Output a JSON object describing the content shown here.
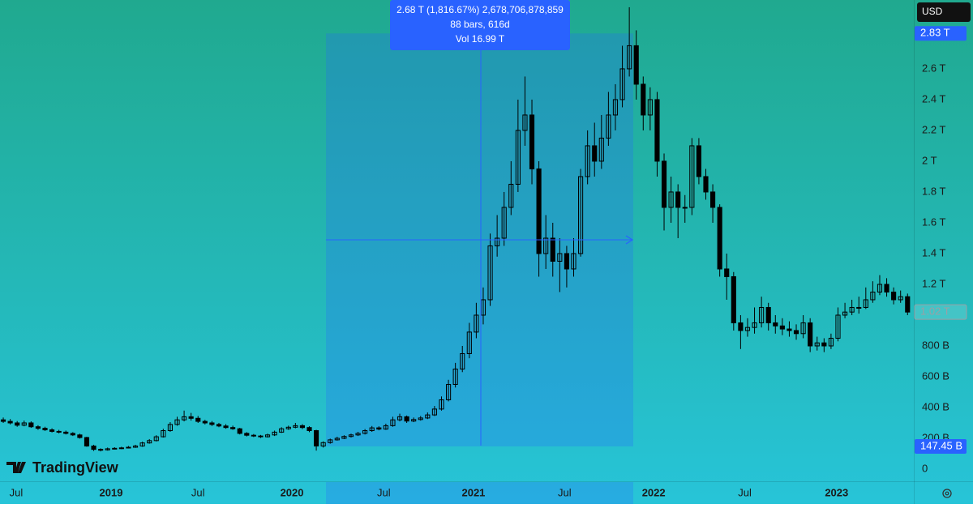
{
  "chart_data": {
    "type": "candlestick",
    "currency": "USD",
    "brand": "TradingView",
    "tooltip": [
      "2.68 T (1,816.67%) 2,678,706,878,859",
      "88 bars, 616d",
      "Vol 16.99 T"
    ],
    "up_color": "#000000",
    "down_color": "#000000",
    "xlim": [
      -0.47,
      130.9
    ],
    "xticks": [
      {
        "value": 1.86,
        "label": "Jul"
      },
      {
        "value": 15.5,
        "label": "2019"
      },
      {
        "value": 28.0,
        "label": "Jul"
      },
      {
        "value": 41.5,
        "label": "2020"
      },
      {
        "value": 54.7,
        "label": "Jul"
      },
      {
        "value": 67.6,
        "label": "2021"
      },
      {
        "value": 80.7,
        "label": "Jul"
      },
      {
        "value": 93.5,
        "label": "2022"
      },
      {
        "value": 106.6,
        "label": "Jul"
      },
      {
        "value": 119.8,
        "label": "2023"
      }
    ],
    "ylim": [
      -79,
      3047
    ],
    "yticks": [
      0,
      {
        "value": 200,
        "label": "200 B"
      },
      {
        "value": 400,
        "label": "400 B"
      },
      {
        "value": 600,
        "label": "600 B"
      },
      {
        "value": 800,
        "label": "800 B"
      },
      {
        "value": 1200,
        "label": "1.2 T"
      },
      {
        "value": 1400,
        "label": "1.4 T"
      },
      {
        "value": 1600,
        "label": "1.6 T"
      },
      {
        "value": 1800,
        "label": "1.8 T"
      },
      {
        "value": 2000,
        "label": "2 T"
      },
      {
        "value": 2200,
        "label": "2.2 T"
      },
      {
        "value": 2400,
        "label": "2.4 T"
      },
      {
        "value": 2600,
        "label": "2.6 T"
      }
    ],
    "price_labels": [
      {
        "value": 2830,
        "label": "2.83 T",
        "color": "#2962ff"
      },
      {
        "value": 1020,
        "label": "1.02 T",
        "color": "#9aa0a6",
        "outline": true
      },
      {
        "value": 147.45,
        "label": "147.45 B",
        "color": "#2962ff"
      }
    ],
    "open": [
      320,
      310,
      300,
      285,
      300,
      275,
      265,
      255,
      245,
      240,
      232,
      222,
      205,
      150,
      128,
      125,
      132,
      135,
      138,
      142,
      150,
      170,
      185,
      210,
      250,
      290,
      320,
      340,
      330,
      310,
      300,
      290,
      280,
      270,
      262,
      232,
      220,
      215,
      210,
      222,
      240,
      262,
      272,
      282,
      270,
      250,
      150,
      172,
      190,
      200,
      212,
      222,
      232,
      250,
      268,
      260,
      282,
      320,
      340,
      312,
      322,
      332,
      352,
      390,
      450,
      550,
      650,
      750,
      890,
      1000,
      1100,
      1450,
      1500,
      1700,
      1850,
      2200,
      2300,
      1950,
      1400,
      1500,
      1350,
      1400,
      1300,
      1400,
      1900,
      2100,
      2000,
      2150,
      2300,
      2400,
      2600,
      2750,
      2500,
      2300,
      2400,
      2000,
      1700,
      1800,
      1700,
      1700,
      2100,
      1900,
      1800,
      1700,
      1300,
      1250,
      950,
      900,
      920,
      950,
      1050,
      950,
      930,
      910,
      900,
      880,
      950,
      800,
      820,
      800,
      850,
      1000,
      1020,
      1050,
      1050,
      1100,
      1150,
      1200,
      1150,
      1100,
      1120
    ],
    "high": [
      335,
      325,
      312,
      315,
      310,
      285,
      275,
      265,
      255,
      250,
      240,
      230,
      210,
      158,
      135,
      140,
      142,
      145,
      150,
      158,
      178,
      195,
      220,
      262,
      305,
      340,
      380,
      365,
      345,
      320,
      312,
      300,
      292,
      282,
      268,
      240,
      228,
      222,
      230,
      250,
      272,
      282,
      300,
      292,
      278,
      255,
      180,
      198,
      210,
      220,
      230,
      242,
      260,
      280,
      278,
      295,
      340,
      360,
      348,
      335,
      345,
      368,
      410,
      472,
      580,
      690,
      800,
      950,
      1080,
      1180,
      1530,
      1650,
      1800,
      2000,
      2400,
      2550,
      2400,
      2000,
      1650,
      1600,
      1500,
      1450,
      1500,
      1950,
      2200,
      2250,
      2300,
      2450,
      2500,
      2750,
      3000,
      2850,
      2550,
      2480,
      2450,
      2050,
      1900,
      1850,
      1780,
      2150,
      2150,
      1950,
      1850,
      1720,
      1400,
      1280,
      1000,
      980,
      1050,
      1120,
      1080,
      1000,
      980,
      960,
      940,
      1000,
      980,
      860,
      850,
      880,
      1050,
      1080,
      1100,
      1120,
      1180,
      1220,
      1260,
      1240,
      1180,
      1160,
      1140
    ],
    "low": [
      300,
      290,
      275,
      278,
      268,
      255,
      248,
      238,
      232,
      225,
      215,
      198,
      145,
      118,
      115,
      120,
      128,
      130,
      134,
      138,
      145,
      165,
      180,
      205,
      242,
      282,
      310,
      315,
      300,
      290,
      280,
      272,
      262,
      255,
      225,
      212,
      208,
      202,
      205,
      215,
      235,
      255,
      265,
      260,
      240,
      120,
      140,
      165,
      185,
      195,
      205,
      215,
      225,
      242,
      252,
      255,
      275,
      310,
      300,
      305,
      315,
      325,
      345,
      380,
      440,
      530,
      630,
      720,
      850,
      940,
      1060,
      1380,
      1450,
      1650,
      1800,
      2100,
      1850,
      1250,
      1300,
      1250,
      1150,
      1180,
      1250,
      1380,
      1850,
      1900,
      1950,
      2100,
      2200,
      2350,
      2550,
      2400,
      2200,
      2200,
      1900,
      1550,
      1600,
      1500,
      1600,
      1650,
      1850,
      1750,
      1600,
      1250,
      1100,
      900,
      780,
      860,
      880,
      920,
      900,
      880,
      870,
      860,
      840,
      850,
      760,
      770,
      760,
      780,
      830,
      980,
      1000,
      1010,
      1040,
      1080,
      1130,
      1120,
      1070,
      1080,
      1000
    ],
    "close": [
      310,
      300,
      285,
      300,
      275,
      265,
      255,
      245,
      240,
      232,
      222,
      205,
      150,
      128,
      125,
      132,
      135,
      138,
      142,
      150,
      170,
      185,
      210,
      250,
      290,
      320,
      340,
      330,
      310,
      300,
      290,
      280,
      270,
      262,
      232,
      220,
      215,
      210,
      222,
      240,
      262,
      272,
      282,
      270,
      250,
      150,
      172,
      190,
      200,
      212,
      222,
      232,
      250,
      268,
      260,
      282,
      320,
      340,
      312,
      322,
      332,
      352,
      390,
      450,
      550,
      650,
      750,
      890,
      1000,
      1100,
      1450,
      1500,
      1700,
      1850,
      2200,
      2300,
      1950,
      1400,
      1500,
      1350,
      1400,
      1300,
      1400,
      1900,
      2100,
      2000,
      2150,
      2300,
      2400,
      2600,
      2750,
      2500,
      2300,
      2400,
      2000,
      1700,
      1800,
      1700,
      1700,
      2100,
      1900,
      1800,
      1700,
      1300,
      1250,
      950,
      900,
      920,
      950,
      1050,
      950,
      930,
      910,
      900,
      880,
      950,
      800,
      820,
      800,
      850,
      1000,
      1020,
      1050,
      1050,
      1100,
      1150,
      1200,
      1150,
      1100,
      1120,
      1020
    ]
  }
}
